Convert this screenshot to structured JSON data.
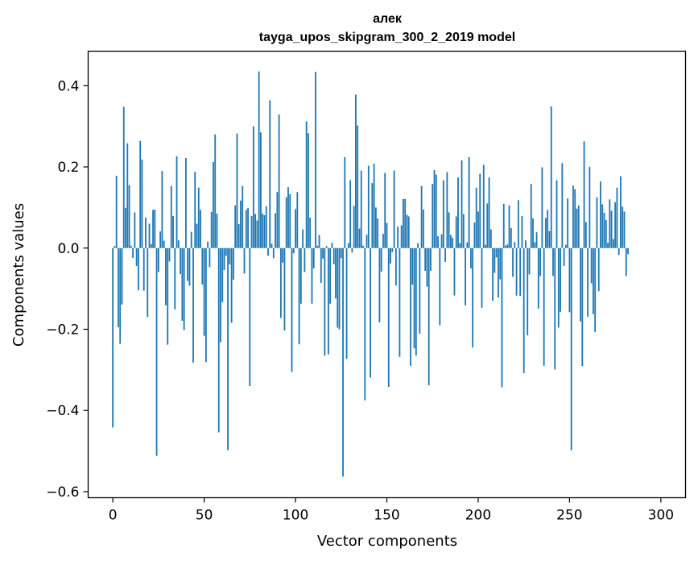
{
  "chart_data": {
    "type": "bar",
    "title": "алек",
    "subtitle": "tayga_upos_skipgram_300_2_2019 model",
    "xlabel": "Vector components",
    "ylabel": "Components values",
    "xlim": [
      -13.5,
      313.5
    ],
    "ylim": [
      -0.615,
      0.485
    ],
    "xticks": [
      0,
      50,
      100,
      150,
      200,
      250,
      300
    ],
    "xtick_labels": [
      "0",
      "50",
      "100",
      "150",
      "200",
      "250",
      "300"
    ],
    "yticks": [
      -0.6,
      -0.4,
      -0.2,
      0.0,
      0.2,
      0.4
    ],
    "ytick_labels": [
      "−0.6",
      "−0.4",
      "−0.2",
      "0.0",
      "0.2",
      "0.4"
    ],
    "bar_color": "#1f77b4",
    "grid": false,
    "series": [
      {
        "name": "алек",
        "values": [
          -0.442,
          0.005,
          0.178,
          -0.195,
          -0.236,
          -0.139,
          0.348,
          0.099,
          0.258,
          0.155,
          0.006,
          -0.024,
          0.088,
          -0.044,
          -0.104,
          0.264,
          0.218,
          -0.105,
          0.075,
          -0.17,
          0.06,
          0.01,
          0.094,
          0.095,
          -0.512,
          -0.059,
          0.041,
          0.19,
          0.018,
          -0.141,
          -0.238,
          -0.033,
          0.153,
          0.079,
          -0.151,
          0.226,
          0.019,
          -0.064,
          -0.179,
          -0.202,
          0.222,
          -0.081,
          -0.093,
          0.04,
          -0.282,
          0.188,
          0.06,
          0.149,
          0.094,
          -0.09,
          -0.216,
          -0.281,
          0.016,
          -0.047,
          0.089,
          0.212,
          0.28,
          0.085,
          -0.454,
          -0.232,
          -0.133,
          -0.054,
          -0.019,
          -0.498,
          -0.04,
          -0.184,
          -0.078,
          0.105,
          0.282,
          0.059,
          0.117,
          0.153,
          -0.063,
          0.094,
          0.099,
          -0.34,
          0.079,
          0.3,
          0.084,
          0.068,
          0.435,
          0.285,
          0.085,
          0.081,
          0.103,
          -0.019,
          0.364,
          0.011,
          -0.025,
          0.086,
          0.138,
          0.329,
          -0.172,
          -0.036,
          -0.203,
          0.125,
          0.15,
          0.133,
          -0.305,
          -0.013,
          0.096,
          0.138,
          -0.237,
          -0.137,
          0.046,
          -0.059,
          0.312,
          0.283,
          0.075,
          -0.137,
          -0.05,
          0.434,
          0.006,
          0.032,
          -0.086,
          -0.026,
          -0.265,
          0.005,
          -0.262,
          -0.137,
          0.013,
          -0.04,
          -0.124,
          -0.196,
          -0.2,
          -0.025,
          -0.563,
          0.224,
          -0.273,
          0.012,
          0.167,
          -0.011,
          0.104,
          0.378,
          0.302,
          0.048,
          0.191,
          0.006,
          -0.375,
          0.033,
          0.203,
          -0.319,
          0.16,
          0.208,
          0.1,
          0.073,
          -0.183,
          -0.058,
          0.035,
          0.185,
          0.062,
          -0.342,
          -0.038,
          -0.01,
          0.191,
          -0.092,
          0.053,
          -0.268,
          0.056,
          0.121,
          0.121,
          0.082,
          0.078,
          -0.29,
          -0.09,
          -0.247,
          -0.265,
          0.012,
          -0.211,
          0.153,
          0.095,
          -0.056,
          -0.095,
          -0.338,
          -0.056,
          0.158,
          0.192,
          0.181,
          0.029,
          -0.19,
          0.034,
          0.167,
          -0.034,
          0.187,
          0.088,
          0.032,
          0.025,
          -0.117,
          0.078,
          0.174,
          0.012,
          0.216,
          0.084,
          -0.141,
          0.014,
          0.224,
          -0.05,
          -0.245,
          0.063,
          0.149,
          0.09,
          0.183,
          -0.147,
          0.205,
          0.008,
          0.11,
          0.174,
          0.046,
          -0.13,
          -0.061,
          -0.023,
          -0.122,
          -0.077,
          -0.343,
          0.109,
          0.006,
          0.009,
          0.105,
          0.049,
          -0.071,
          0.015,
          -0.117,
          0.118,
          -0.118,
          0.079,
          -0.308,
          0.019,
          -0.215,
          -0.065,
          0.158,
          0.073,
          0.014,
          0.039,
          -0.149,
          -0.069,
          0.199,
          -0.29,
          0.074,
          0.094,
          0.042,
          0.349,
          -0.069,
          -0.299,
          0.167,
          -0.196,
          -0.157,
          0.209,
          -0.044,
          0.008,
          0.122,
          -0.158,
          -0.498,
          0.154,
          0.145,
          0.097,
          0.105,
          -0.181,
          -0.291,
          0.263,
          0.064,
          -0.169,
          0.2,
          -0.087,
          -0.163,
          -0.207,
          0.125,
          -0.106,
          0.164,
          0.108,
          0.087,
          0.069,
          0.013,
          0.12,
          0.092,
          0.022,
          0.113,
          0.149,
          -0.017,
          0.177,
          0.102,
          0.09,
          -0.069,
          -0.015
        ]
      }
    ]
  }
}
